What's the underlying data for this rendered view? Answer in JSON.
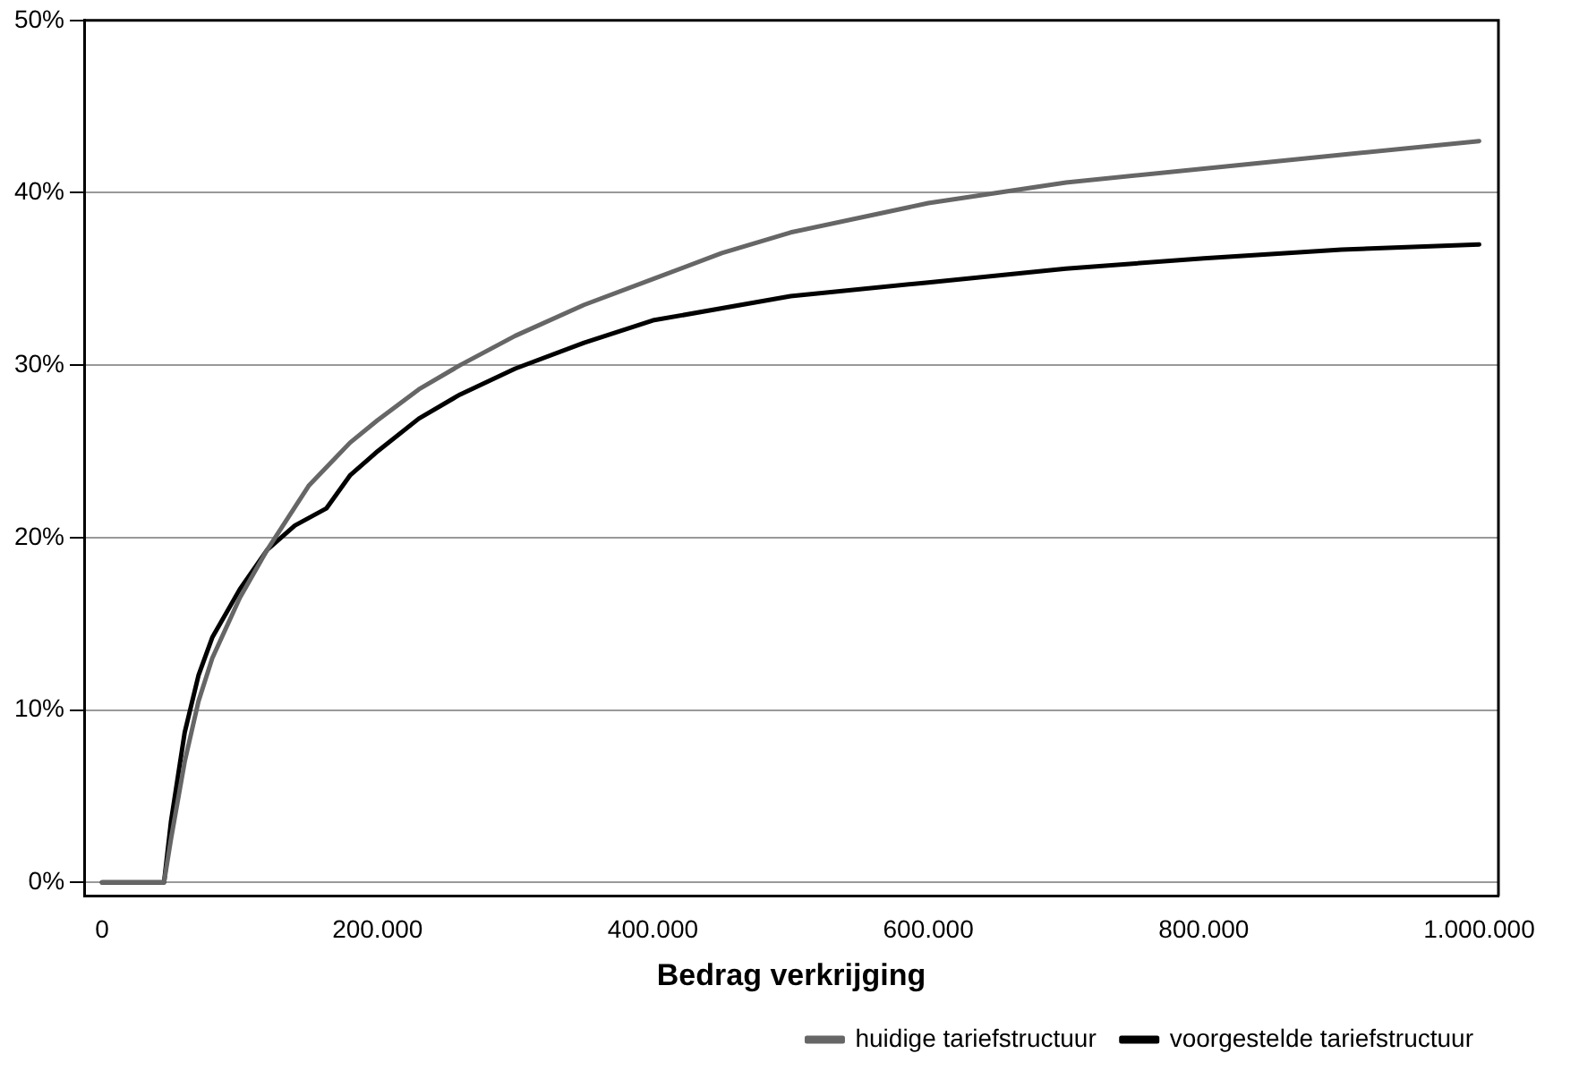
{
  "chart_data": {
    "type": "line",
    "xlabel": "Bedrag verkrijging",
    "xlim": [
      -13000,
      1014000
    ],
    "ylim": [
      -0.8,
      50
    ],
    "xticks": [
      {
        "value": 0,
        "label": "0"
      },
      {
        "value": 200000,
        "label": "200.000"
      },
      {
        "value": 400000,
        "label": "400.000"
      },
      {
        "value": 600000,
        "label": "600.000"
      },
      {
        "value": 800000,
        "label": "800.000"
      },
      {
        "value": 1000000,
        "label": "1.000.000"
      }
    ],
    "yticks": [
      {
        "value": 0,
        "label": "0%"
      },
      {
        "value": 10,
        "label": "10%"
      },
      {
        "value": 20,
        "label": "20%"
      },
      {
        "value": 30,
        "label": "30%"
      },
      {
        "value": 40,
        "label": "40%"
      },
      {
        "value": 50,
        "label": "50%"
      }
    ],
    "grid": "y",
    "legend": "bottom",
    "marker": "none",
    "line_style": "solid",
    "series": [
      {
        "name": "huidige tariefstructuur",
        "color": "#666666",
        "x": [
          0,
          45000,
          50000,
          60000,
          70000,
          80000,
          100000,
          120000,
          150000,
          180000,
          200000,
          230000,
          260000,
          300000,
          350000,
          400000,
          450000,
          500000,
          600000,
          700000,
          800000,
          900000,
          1000000
        ],
        "values": [
          0,
          0,
          2.5,
          7,
          10.5,
          13,
          16.5,
          19.3,
          23,
          25.5,
          26.8,
          28.6,
          30,
          31.7,
          33.5,
          35,
          36.5,
          37.7,
          39.4,
          40.6,
          41.4,
          42.2,
          43
        ]
      },
      {
        "name": "voorgestelde tariefstructuur",
        "color": "#000000",
        "x": [
          0,
          45000,
          50000,
          60000,
          70000,
          80000,
          100000,
          120000,
          140000,
          163000,
          180000,
          200000,
          230000,
          260000,
          300000,
          350000,
          400000,
          500000,
          600000,
          700000,
          800000,
          900000,
          1000000
        ],
        "values": [
          0,
          0,
          3.5,
          8.7,
          12,
          14.2,
          17,
          19.3,
          20.7,
          21.7,
          23.6,
          25,
          26.9,
          28.3,
          29.8,
          31.3,
          32.6,
          34,
          34.8,
          35.6,
          36.2,
          36.7,
          37
        ]
      }
    ]
  }
}
